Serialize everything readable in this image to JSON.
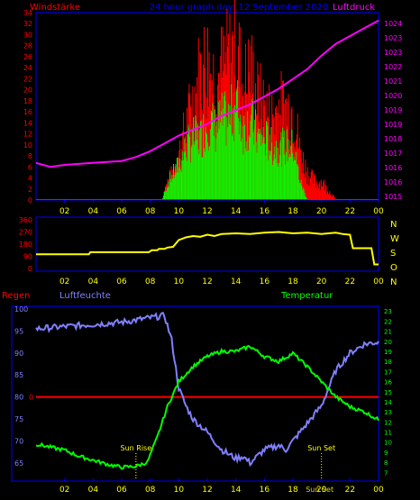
{
  "header": {
    "left": "Windstärke",
    "center": "24 hour graph day: 12 September 2020",
    "right": "Luftdruck"
  },
  "colors": {
    "background": "#000000",
    "wind": "#ff0000",
    "gust": "#ff0000",
    "wind_avg": "#00ff00",
    "pressure": "#ff00ff",
    "direction": "#ffff00",
    "humidity": "#8080ff",
    "temperature": "#00ff00",
    "rain": "#ff0000",
    "axis": "#0000ff",
    "time_ticks": "#ffff00",
    "compass": "#ffff00",
    "temp_ticks": "#00ff00"
  },
  "chart_data": [
    {
      "type": "bar",
      "name": "wind-pressure",
      "left_axis_label": "Windstärke",
      "right_axis_label": "Luftdruck",
      "x_ticks": [
        "02",
        "04",
        "06",
        "08",
        "10",
        "12",
        "14",
        "16",
        "18",
        "20",
        "22",
        "00"
      ],
      "x_range": [
        0,
        24
      ],
      "y_left_range": [
        0,
        34
      ],
      "y_left_ticks": [
        "0",
        "2",
        "4",
        "6",
        "8",
        "10",
        "12",
        "14",
        "16",
        "18",
        "20",
        "22",
        "24",
        "26",
        "28",
        "30",
        "32",
        "34"
      ],
      "y_right_range": [
        1015,
        1024.6
      ],
      "y_right_ticks": [
        "1015",
        "1016",
        "1016",
        "1017",
        "1018",
        "1019",
        "1019",
        "1020",
        "1021",
        "1022",
        "1023",
        "1023",
        "1024"
      ],
      "gust_profile": [
        [
          8.8,
          0
        ],
        [
          9.2,
          4
        ],
        [
          9.6,
          6
        ],
        [
          10,
          10
        ],
        [
          10.5,
          16
        ],
        [
          11,
          22
        ],
        [
          11.5,
          28
        ],
        [
          12,
          30
        ],
        [
          12.5,
          26
        ],
        [
          13,
          28
        ],
        [
          13.5,
          30
        ],
        [
          14,
          34
        ],
        [
          14.5,
          24
        ],
        [
          15,
          28
        ],
        [
          15.5,
          22
        ],
        [
          16,
          20
        ],
        [
          16.5,
          18
        ],
        [
          17,
          20
        ],
        [
          17.5,
          20
        ],
        [
          18,
          20
        ],
        [
          18.5,
          10
        ],
        [
          19,
          6
        ],
        [
          19.5,
          4
        ],
        [
          20,
          4
        ],
        [
          20.5,
          2
        ],
        [
          21,
          0
        ]
      ],
      "avg_profile": [
        [
          8.8,
          0
        ],
        [
          9.2,
          4
        ],
        [
          9.6,
          6
        ],
        [
          10,
          8
        ],
        [
          10.5,
          12
        ],
        [
          11,
          14
        ],
        [
          11.5,
          14
        ],
        [
          12,
          18
        ],
        [
          12.5,
          16
        ],
        [
          13,
          18
        ],
        [
          13.5,
          18
        ],
        [
          14,
          22
        ],
        [
          14.5,
          16
        ],
        [
          15,
          18
        ],
        [
          15.5,
          14
        ],
        [
          16,
          14
        ],
        [
          16.5,
          12
        ],
        [
          17,
          12
        ],
        [
          17.5,
          12
        ],
        [
          18,
          12
        ],
        [
          18.5,
          4
        ],
        [
          19,
          0
        ]
      ],
      "pressure": [
        [
          0,
          1016.9
        ],
        [
          1,
          1016.7
        ],
        [
          2,
          1016.8
        ],
        [
          3,
          1016.85
        ],
        [
          4,
          1016.9
        ],
        [
          5,
          1016.95
        ],
        [
          6,
          1017.0
        ],
        [
          7,
          1017.2
        ],
        [
          8,
          1017.5
        ],
        [
          9,
          1017.9
        ],
        [
          10,
          1018.3
        ],
        [
          11,
          1018.6
        ],
        [
          12,
          1018.9
        ],
        [
          13,
          1019.3
        ],
        [
          14,
          1019.6
        ],
        [
          15,
          1019.9
        ],
        [
          16,
          1020.3
        ],
        [
          17,
          1020.7
        ],
        [
          18,
          1021.2
        ],
        [
          19,
          1021.7
        ],
        [
          20,
          1022.4
        ],
        [
          21,
          1023.0
        ],
        [
          22,
          1023.4
        ],
        [
          23,
          1023.8
        ],
        [
          24,
          1024.2
        ]
      ]
    },
    {
      "type": "line",
      "name": "wind-direction",
      "x_ticks": [
        "02",
        "04",
        "06",
        "08",
        "10",
        "12",
        "14",
        "16",
        "18",
        "20",
        "22",
        "00"
      ],
      "x_range": [
        0,
        24
      ],
      "y_range": [
        0,
        360
      ],
      "y_ticks": [
        "0",
        "90",
        "180",
        "270",
        "360"
      ],
      "compass": [
        "N",
        "W",
        "S",
        "O",
        "N"
      ],
      "series": [
        {
          "values": [
            [
              0,
              105
            ],
            [
              3.7,
              105
            ],
            [
              3.8,
              120
            ],
            [
              7.9,
              120
            ],
            [
              8.1,
              135
            ],
            [
              8.5,
              135
            ],
            [
              8.6,
              145
            ],
            [
              9.0,
              145
            ],
            [
              9.2,
              155
            ],
            [
              9.6,
              160
            ],
            [
              10.0,
              210
            ],
            [
              10.5,
              230
            ],
            [
              11.0,
              240
            ],
            [
              11.5,
              235
            ],
            [
              12.0,
              250
            ],
            [
              12.5,
              240
            ],
            [
              13.0,
              255
            ],
            [
              14.0,
              260
            ],
            [
              15.0,
              255
            ],
            [
              16.0,
              265
            ],
            [
              17.0,
              270
            ],
            [
              18.0,
              260
            ],
            [
              19.0,
              265
            ],
            [
              20.0,
              255
            ],
            [
              21.0,
              265
            ],
            [
              21.5,
              255
            ],
            [
              22.0,
              250
            ],
            [
              22.2,
              150
            ],
            [
              23.5,
              150
            ],
            [
              23.7,
              30
            ],
            [
              24.0,
              30
            ]
          ]
        }
      ]
    },
    {
      "type": "line",
      "name": "rain-humidity-temperature",
      "labels": {
        "rain": "Regen",
        "humidity": "Luftfeuchte",
        "temperature": "Temperatur"
      },
      "x_ticks": [
        "02",
        "04",
        "06",
        "08",
        "10",
        "12",
        "14",
        "16",
        "18",
        "20",
        "22",
        "00"
      ],
      "x_range": [
        0,
        24
      ],
      "humidity_range": [
        61.5,
        100
      ],
      "humidity_ticks": [
        "65",
        "70",
        "75",
        "80",
        "85",
        "90",
        "95",
        "100"
      ],
      "temperature_range": [
        6.4,
        23.2
      ],
      "temperature_ticks": [
        "7",
        "8",
        "9",
        "10",
        "11",
        "12",
        "13",
        "14",
        "15",
        "16",
        "17",
        "18",
        "19",
        "20",
        "21",
        "22",
        "23"
      ],
      "rain_label": "0",
      "humidity": [
        [
          0,
          95.5
        ],
        [
          2,
          96
        ],
        [
          4,
          96.5
        ],
        [
          6,
          97
        ],
        [
          8,
          98
        ],
        [
          9,
          98.5
        ],
        [
          9.5,
          93
        ],
        [
          10,
          82
        ],
        [
          10.5,
          78
        ],
        [
          11,
          75
        ],
        [
          12,
          72
        ],
        [
          13,
          68
        ],
        [
          13.5,
          67
        ],
        [
          14,
          66
        ],
        [
          14.5,
          66.5
        ],
        [
          15,
          65
        ],
        [
          16,
          68
        ],
        [
          17,
          69
        ],
        [
          17.5,
          68
        ],
        [
          18,
          70
        ],
        [
          19,
          74
        ],
        [
          20,
          78
        ],
        [
          20.5,
          82
        ],
        [
          21,
          86
        ],
        [
          22,
          90
        ],
        [
          23,
          92
        ],
        [
          24,
          92.5
        ]
      ],
      "temperature": [
        [
          0,
          9.8
        ],
        [
          2,
          9.2
        ],
        [
          3,
          8.6
        ],
        [
          4,
          8.2
        ],
        [
          5,
          7.8
        ],
        [
          6,
          7.5
        ],
        [
          7,
          7.6
        ],
        [
          7.8,
          8.0
        ],
        [
          8.5,
          10.5
        ],
        [
          9.2,
          13.5
        ],
        [
          10,
          16
        ],
        [
          11,
          17.5
        ],
        [
          12,
          18.5
        ],
        [
          13,
          19
        ],
        [
          14,
          19
        ],
        [
          15,
          19.5
        ],
        [
          16,
          18.5
        ],
        [
          17,
          18
        ],
        [
          18,
          18.8
        ],
        [
          19,
          17.5
        ],
        [
          20,
          16
        ],
        [
          21,
          14.5
        ],
        [
          22,
          13.5
        ],
        [
          23,
          13
        ],
        [
          24,
          12.2
        ]
      ],
      "annotations": [
        {
          "text": "Sun Rise",
          "hour": 7.0
        },
        {
          "text": "Sun Set",
          "hour": 20.0
        }
      ],
      "sun_noon_label": "Sun Set"
    }
  ]
}
